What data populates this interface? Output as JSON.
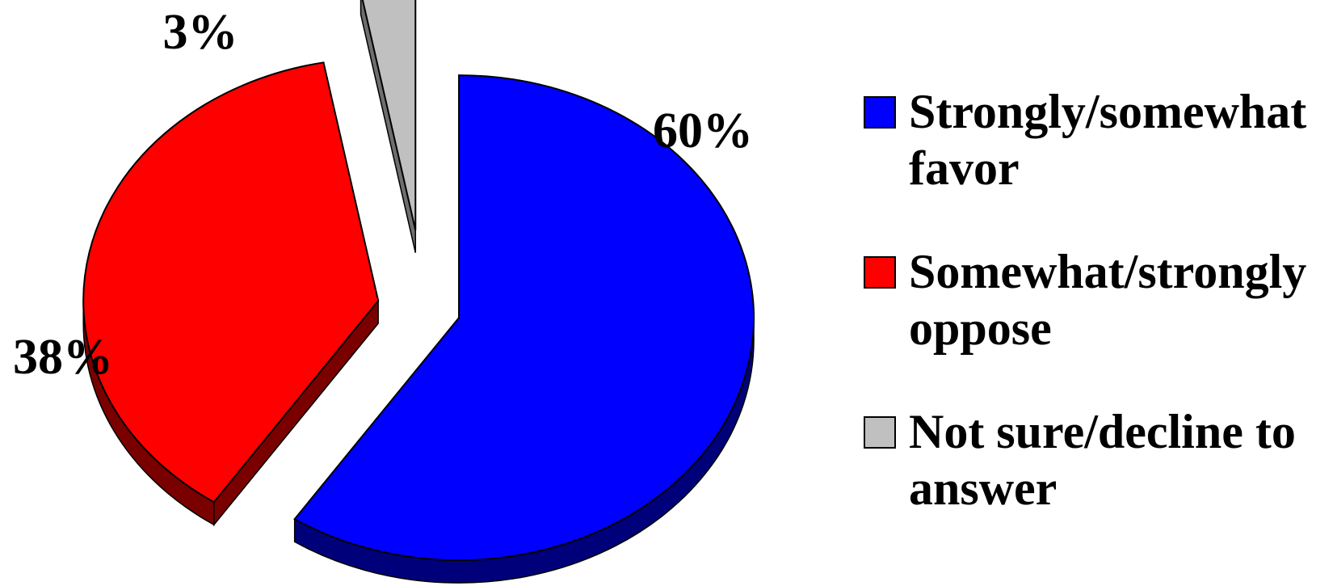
{
  "chart_data": {
    "type": "pie",
    "title": "",
    "style": "3d-exploded",
    "legend_position": "right",
    "slices": [
      {
        "label": "Strongly/somewhat favor",
        "value": 60,
        "value_label": "60%",
        "color": "#0000FF",
        "side_color": "#00007A",
        "legend_lines": [
          "Strongly/somewhat",
          "favor"
        ]
      },
      {
        "label": "Somewhat/strongly oppose",
        "value": 38,
        "value_label": "38%",
        "color": "#FF0000",
        "side_color": "#7A0000",
        "legend_lines": [
          "Somewhat/strongly",
          "oppose"
        ]
      },
      {
        "label": "Not sure/decline to answer",
        "value": 3,
        "value_label": "3%",
        "color": "#C0C0C0",
        "side_color": "#6E6E6E",
        "legend_lines": [
          "Not sure/decline to",
          "answer"
        ]
      }
    ]
  }
}
